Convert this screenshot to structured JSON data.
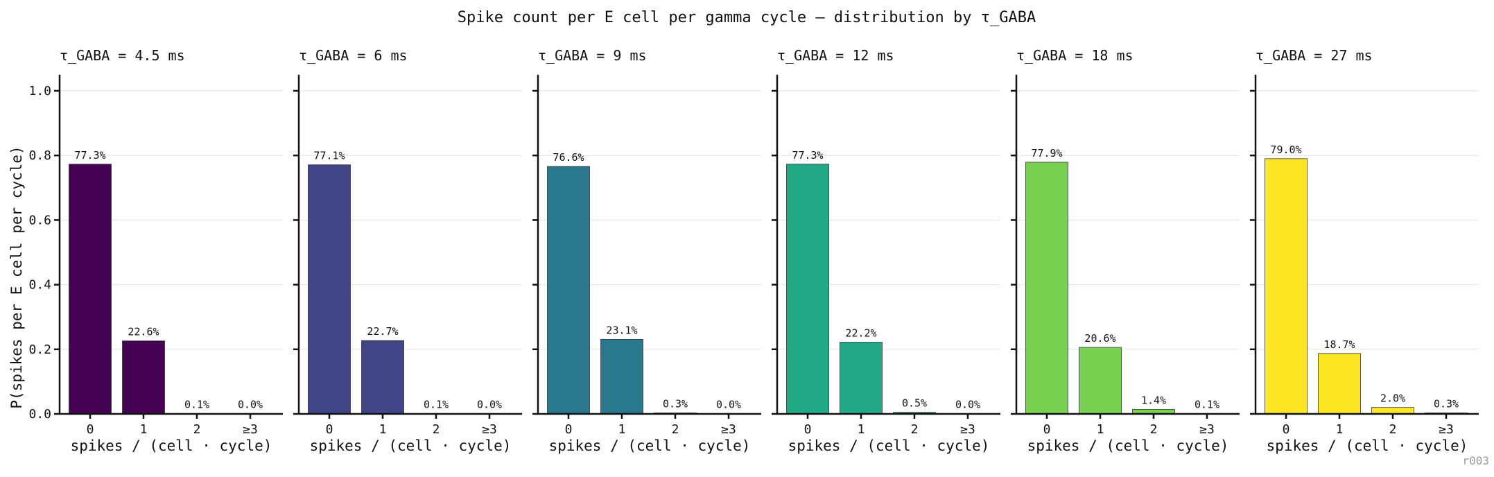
{
  "figure": {
    "title": "Spike count per E cell per gamma cycle — distribution by τ_GABA",
    "run_id": "r003",
    "ylabel": "P(spikes per E cell per cycle)",
    "xlabel": "spikes / (cell · cycle)"
  },
  "chart_data": [
    {
      "type": "bar",
      "title": "τ_GABA = 4.5 ms",
      "categories": [
        "0",
        "1",
        "2",
        "≥3"
      ],
      "values": [
        0.773,
        0.226,
        0.001,
        0.0
      ],
      "labels": [
        "77.3%",
        "22.6%",
        "0.1%",
        "0.0%"
      ],
      "color": "#440154",
      "xlabel": "spikes / (cell · cycle)",
      "ylabel": "P(spikes per E cell per cycle)",
      "ylim": [
        0,
        1.05
      ],
      "yticks": [
        "0.0",
        "0.2",
        "0.4",
        "0.6",
        "0.8",
        "1.0"
      ],
      "grid": true
    },
    {
      "type": "bar",
      "title": "τ_GABA = 6 ms",
      "categories": [
        "0",
        "1",
        "2",
        "≥3"
      ],
      "values": [
        0.771,
        0.227,
        0.001,
        0.0
      ],
      "labels": [
        "77.1%",
        "22.7%",
        "0.1%",
        "0.0%"
      ],
      "color": "#414487",
      "xlabel": "spikes / (cell · cycle)",
      "ylim": [
        0,
        1.05
      ],
      "grid": true
    },
    {
      "type": "bar",
      "title": "τ_GABA = 9 ms",
      "categories": [
        "0",
        "1",
        "2",
        "≥3"
      ],
      "values": [
        0.766,
        0.231,
        0.003,
        0.0
      ],
      "labels": [
        "76.6%",
        "23.1%",
        "0.3%",
        "0.0%"
      ],
      "color": "#2a788e",
      "xlabel": "spikes / (cell · cycle)",
      "ylim": [
        0,
        1.05
      ],
      "grid": true
    },
    {
      "type": "bar",
      "title": "τ_GABA = 12 ms",
      "categories": [
        "0",
        "1",
        "2",
        "≥3"
      ],
      "values": [
        0.773,
        0.222,
        0.005,
        0.0
      ],
      "labels": [
        "77.3%",
        "22.2%",
        "0.5%",
        "0.0%"
      ],
      "color": "#22a884",
      "xlabel": "spikes / (cell · cycle)",
      "ylim": [
        0,
        1.05
      ],
      "grid": true
    },
    {
      "type": "bar",
      "title": "τ_GABA = 18 ms",
      "categories": [
        "0",
        "1",
        "2",
        "≥3"
      ],
      "values": [
        0.779,
        0.206,
        0.014,
        0.001
      ],
      "labels": [
        "77.9%",
        "20.6%",
        "1.4%",
        "0.1%"
      ],
      "color": "#7ad151",
      "xlabel": "spikes / (cell · cycle)",
      "ylim": [
        0,
        1.05
      ],
      "grid": true
    },
    {
      "type": "bar",
      "title": "τ_GABA = 27 ms",
      "categories": [
        "0",
        "1",
        "2",
        "≥3"
      ],
      "values": [
        0.79,
        0.187,
        0.02,
        0.003
      ],
      "labels": [
        "79.0%",
        "18.7%",
        "2.0%",
        "0.3%"
      ],
      "color": "#fde725",
      "xlabel": "spikes / (cell · cycle)",
      "ylim": [
        0,
        1.05
      ],
      "grid": true
    }
  ]
}
